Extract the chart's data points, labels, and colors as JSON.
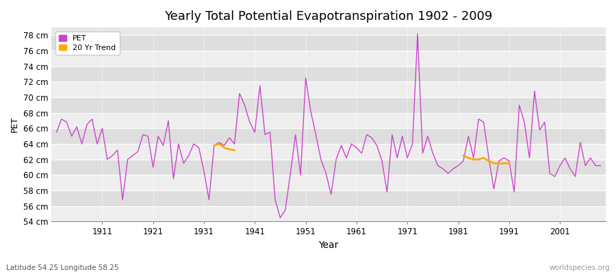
{
  "title": "Yearly Total Potential Evapotranspiration 1902 - 2009",
  "xlabel": "Year",
  "ylabel": "PET",
  "subtitle": "Latitude 54.25 Longitude 58.25",
  "watermark": "worldspecies.org",
  "pet_color": "#cc44cc",
  "trend_color": "#ffaa00",
  "fig_bg": "#ffffff",
  "plot_bg": "#e8e8e8",
  "band_light": "#eeeeee",
  "band_dark": "#dedede",
  "ylim": [
    54,
    79
  ],
  "yticks": [
    54,
    56,
    58,
    60,
    62,
    64,
    66,
    68,
    70,
    72,
    74,
    76,
    78
  ],
  "xlim": [
    1901,
    2010
  ],
  "xticks": [
    1911,
    1921,
    1931,
    1941,
    1951,
    1961,
    1971,
    1981,
    1991,
    2001
  ],
  "pet_data": {
    "1902": 65.5,
    "1903": 67.2,
    "1904": 66.8,
    "1905": 65.0,
    "1906": 66.2,
    "1907": 64.0,
    "1908": 66.5,
    "1909": 67.2,
    "1910": 64.0,
    "1911": 66.0,
    "1912": 62.0,
    "1913": 62.5,
    "1914": 63.2,
    "1915": 56.8,
    "1916": 62.0,
    "1917": 62.5,
    "1918": 63.0,
    "1919": 65.2,
    "1920": 65.0,
    "1921": 61.0,
    "1922": 65.0,
    "1923": 63.8,
    "1924": 67.0,
    "1925": 59.5,
    "1926": 64.0,
    "1927": 61.5,
    "1928": 62.5,
    "1929": 64.0,
    "1930": 63.5,
    "1931": 60.5,
    "1932": 56.8,
    "1933": 63.8,
    "1934": 64.2,
    "1935": 63.8,
    "1936": 64.8,
    "1937": 64.0,
    "1938": 70.5,
    "1939": 69.0,
    "1940": 66.8,
    "1941": 65.5,
    "1942": 71.5,
    "1943": 65.2,
    "1944": 65.5,
    "1945": 56.8,
    "1946": 54.5,
    "1947": 55.5,
    "1948": 60.2,
    "1949": 65.2,
    "1950": 60.0,
    "1951": 72.5,
    "1952": 68.2,
    "1953": 65.2,
    "1954": 62.0,
    "1955": 60.2,
    "1956": 57.5,
    "1957": 62.0,
    "1958": 63.8,
    "1959": 62.2,
    "1960": 64.0,
    "1961": 63.5,
    "1962": 62.8,
    "1963": 65.2,
    "1964": 64.8,
    "1965": 63.8,
    "1966": 61.8,
    "1967": 57.8,
    "1968": 65.2,
    "1969": 62.2,
    "1970": 65.0,
    "1971": 62.2,
    "1972": 64.0,
    "1973": 78.2,
    "1974": 62.8,
    "1975": 65.0,
    "1976": 62.8,
    "1977": 61.2,
    "1978": 60.8,
    "1979": 60.2,
    "1980": 60.8,
    "1981": 61.2,
    "1982": 61.8,
    "1983": 65.0,
    "1984": 62.2,
    "1985": 67.2,
    "1986": 66.8,
    "1987": 62.2,
    "1988": 58.2,
    "1989": 61.8,
    "1990": 62.2,
    "1991": 61.8,
    "1992": 57.8,
    "1993": 69.0,
    "1994": 66.8,
    "1995": 62.2,
    "1996": 70.8,
    "1997": 65.8,
    "1998": 66.8,
    "1999": 60.2,
    "2000": 59.8,
    "2001": 61.2,
    "2002": 62.2,
    "2003": 60.8,
    "2004": 59.8,
    "2005": 64.2,
    "2006": 61.2,
    "2007": 62.2,
    "2008": 61.2,
    "2009": 61.2
  },
  "trend_segments": [
    {
      "years": [
        1933,
        1934,
        1935,
        1936,
        1937
      ],
      "values": [
        63.8,
        64.0,
        63.5,
        63.3,
        63.2
      ]
    },
    {
      "years": [
        1982,
        1983,
        1984,
        1985,
        1986,
        1987,
        1988,
        1989,
        1990,
        1991
      ],
      "values": [
        62.5,
        62.2,
        62.0,
        62.0,
        62.2,
        61.8,
        61.5,
        61.5,
        61.5,
        61.5
      ]
    }
  ]
}
